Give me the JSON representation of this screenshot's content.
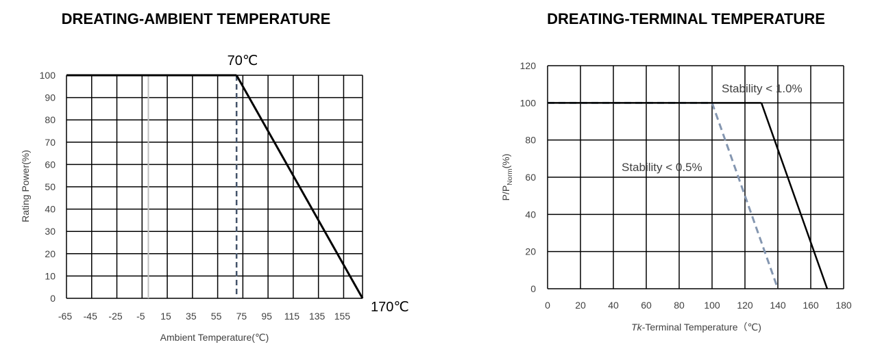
{
  "chart_data": [
    {
      "type": "line",
      "title": "DREATING-AMBIENT TEMPERATURE",
      "xlabel": "Ambient Temperature(℃)",
      "ylabel": "Rating Power(%)",
      "xlim": [
        -65,
        170
      ],
      "ylim": [
        0,
        100
      ],
      "x_ticks": [
        -65,
        -45,
        -25,
        -5,
        15,
        35,
        55,
        75,
        95,
        115,
        135,
        155
      ],
      "x_tick_labels": [
        "-65",
        "-45",
        "-25",
        "-5",
        "15",
        "35",
        "55",
        "75",
        "95",
        "115",
        "135",
        "155"
      ],
      "y_ticks": [
        0,
        10,
        20,
        30,
        40,
        50,
        60,
        70,
        80,
        90,
        100
      ],
      "y_tick_labels": [
        "0",
        "10",
        "20",
        "30",
        "40",
        "50",
        "60",
        "70",
        "80",
        "90",
        "100"
      ],
      "x_grid_step": 20,
      "grid": true,
      "series": [
        {
          "x": [
            -65,
            70,
            170
          ],
          "y": [
            100,
            100,
            0
          ],
          "color": "#000000",
          "style": "solid"
        }
      ],
      "reference_lines": [
        {
          "x": 0,
          "color": "#bfbfbf",
          "style": "solid"
        },
        {
          "x": 70,
          "color": "#44546a",
          "style": "dashed"
        }
      ],
      "annotations": [
        {
          "text": "70℃",
          "x": 70,
          "y": 100
        },
        {
          "text": "170℃",
          "x": 170,
          "y": 0
        }
      ]
    },
    {
      "type": "line",
      "title": "DREATING-TERMINAL TEMPERATURE",
      "xlabel_prefix": "Tk",
      "xlabel": "-Terminal Temperature（℃)",
      "ylabel": "P/Pnorm(%)",
      "ylabel_parts": [
        "P/P",
        "Norm",
        "(%)"
      ],
      "xlim": [
        0,
        180
      ],
      "ylim": [
        0,
        120
      ],
      "x_ticks": [
        0,
        20,
        40,
        60,
        80,
        100,
        120,
        140,
        160,
        180
      ],
      "x_tick_labels": [
        "0",
        "20",
        "40",
        "60",
        "80",
        "100",
        "120",
        "140",
        "160",
        "180"
      ],
      "y_ticks": [
        0,
        20,
        40,
        60,
        80,
        100,
        120
      ],
      "y_tick_labels": [
        "0",
        "20",
        "40",
        "60",
        "80",
        "100",
        "120"
      ],
      "grid": true,
      "series": [
        {
          "name": "Stability < 1.0%",
          "x": [
            0,
            130,
            170
          ],
          "y": [
            100,
            100,
            0
          ],
          "color": "#000000",
          "style": "solid"
        },
        {
          "name": "Stability < 0.5%",
          "x": [
            0,
            100,
            140
          ],
          "y": [
            100,
            100,
            0
          ],
          "color": "#8496b0",
          "style": "dashed"
        }
      ],
      "annotations": [
        {
          "text": "Stability < 1.0%",
          "x": 105,
          "y": 108
        },
        {
          "text": "Stability < 0.5%",
          "x": 45,
          "y": 65
        }
      ]
    }
  ]
}
